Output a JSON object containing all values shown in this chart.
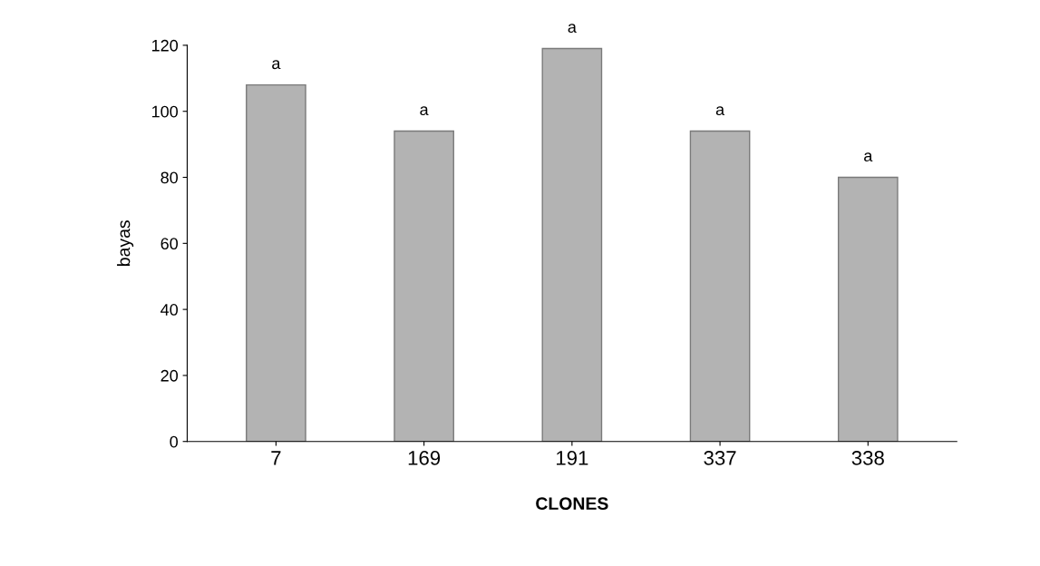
{
  "chart_data": {
    "type": "bar",
    "xlabel": "CLONES",
    "ylabel": "bayas",
    "categories": [
      "7",
      "169",
      "191",
      "337",
      "338"
    ],
    "values": [
      108,
      94,
      119,
      94,
      80
    ],
    "color": "#b3b3b3",
    "ylim": [
      0,
      120
    ],
    "yticks": [
      0,
      20,
      40,
      60,
      80,
      100,
      120
    ],
    "grid": false,
    "annotations": [
      {
        "text": "a",
        "x": "7",
        "y": 108
      },
      {
        "text": "a",
        "x": "169",
        "y": 94
      },
      {
        "text": "a",
        "x": "191",
        "y": 119
      },
      {
        "text": "a",
        "x": "337",
        "y": 94
      },
      {
        "text": "a",
        "x": "338",
        "y": 80
      }
    ]
  }
}
